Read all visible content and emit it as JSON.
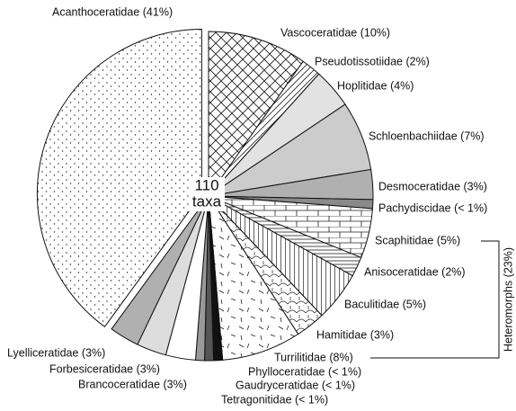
{
  "chart_data": {
    "type": "pie",
    "categories": [
      "Vascoceratidae (10%)",
      "Pseudotissotiidae (2%)",
      "Hoplitidae (4%)",
      "Schloenbachiidae (7%)",
      "Desmoceratidae (3%)",
      "Pachydiscidae (< 1%)",
      "Scaphitidae (5%)",
      "Anisoceratidae (2%)",
      "Baculitidae (5%)",
      "Hamitidae (3%)",
      "Turrilitidae (8%)",
      "Phylloceratidae (< 1%)",
      "Gaudryceratidae (< 1%)",
      "Tetragonitidae (< 1%)",
      "Brancoceratidae (3%)",
      "Forbesiceratidae (3%)",
      "Lyelliceratidae (3%)",
      "Acanthoceratidae (41%)"
    ],
    "values": [
      10,
      2,
      4,
      7,
      3,
      0.9,
      5,
      2,
      5,
      3,
      8,
      0.9,
      0.9,
      0.9,
      3,
      3,
      3,
      41
    ],
    "colors": [
      "#ffffff",
      "#ffffff",
      "#e2e2e2",
      "#cccccc",
      "#b0b0b0",
      "#8a8a8a",
      "#ffffff",
      "#ffffff",
      "#ffffff",
      "#ffffff",
      "#ffffff",
      "#111111",
      "#555555",
      "#999999",
      "#ffffff",
      "#dddddd",
      "#b0b0b0",
      "#ffffff"
    ],
    "patterns": [
      "crosshatch",
      "diagonal",
      "none",
      "none",
      "none",
      "none",
      "bricks",
      "horizontal",
      "vertical",
      "arcs",
      "dashes",
      "none",
      "none",
      "none",
      "none",
      "none",
      "none",
      "dots"
    ],
    "exploded": [
      17
    ],
    "center_text": [
      "110",
      "taxa"
    ],
    "annotations": [
      {
        "text": "Heteromorphs (23%)",
        "from": 6,
        "to": 10
      }
    ]
  }
}
